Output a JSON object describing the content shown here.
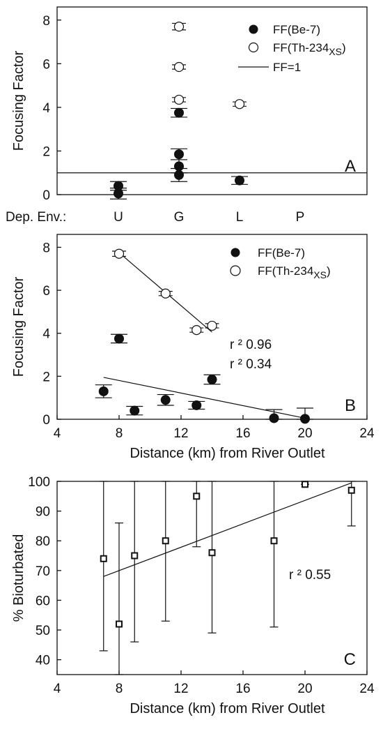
{
  "chart_data": [
    {
      "type": "scatter",
      "panel_label": "A",
      "ylabel": "Focusing Factor",
      "ylim": [
        0,
        8.6
      ],
      "yticks": [
        0,
        2,
        4,
        6,
        8
      ],
      "xaxis_prefix": "Dep. Env.:",
      "categories": [
        "U",
        "G",
        "L",
        "P"
      ],
      "legend_position": "top-right",
      "legend": {
        "filled": "FF(Be-7)",
        "open_main": "FF(Th-234",
        "open_sub": "XS",
        "open_close": ")",
        "line": "FF=1"
      },
      "reference_line": 1,
      "series": [
        {
          "name": "FF(Be-7)",
          "marker": "filled-circle",
          "points": [
            {
              "category": "U",
              "y": 0.05,
              "err": 0.25
            },
            {
              "category": "U",
              "y": 0.4,
              "err": 0.2
            },
            {
              "category": "G",
              "y": 3.75,
              "err": 0.2
            },
            {
              "category": "G",
              "y": 1.85,
              "err": 0.25
            },
            {
              "category": "G",
              "y": 1.3,
              "err": 0.3
            },
            {
              "category": "G",
              "y": 0.9,
              "err": 0.3
            },
            {
              "category": "L",
              "y": 0.65,
              "err": 0.18
            }
          ]
        },
        {
          "name": "FF(Th-234XS)",
          "marker": "open-circle",
          "points": [
            {
              "category": "G",
              "y": 7.7,
              "err": 0.15
            },
            {
              "category": "G",
              "y": 5.85,
              "err": 0.1
            },
            {
              "category": "G",
              "y": 4.35,
              "err": 0.1
            },
            {
              "category": "L",
              "y": 4.15,
              "err": 0.1
            }
          ]
        }
      ]
    },
    {
      "type": "scatter",
      "panel_label": "B",
      "ylabel": "Focusing Factor",
      "xlabel": "Distance (km) from River Outlet",
      "xlim": [
        4,
        24
      ],
      "ylim": [
        0,
        8.6
      ],
      "xticks": [
        4,
        8,
        12,
        16,
        20,
        24
      ],
      "yticks": [
        0,
        2,
        4,
        6,
        8
      ],
      "legend_position": "top-right",
      "legend": {
        "filled": "FF(Be-7)",
        "open_main": "FF(Th-234",
        "open_sub": "XS",
        "open_close": ")"
      },
      "r_squared": [
        "r ²   0.96",
        "r ²   0.34"
      ],
      "series": [
        {
          "name": "FF(Be-7)",
          "marker": "filled-circle",
          "points": [
            {
              "x": 7,
              "y": 1.3,
              "err": 0.3
            },
            {
              "x": 8,
              "y": 3.75,
              "err": 0.2
            },
            {
              "x": 9,
              "y": 0.4,
              "err": 0.2
            },
            {
              "x": 11,
              "y": 0.9,
              "err": 0.25
            },
            {
              "x": 13,
              "y": 0.65,
              "err": 0.18
            },
            {
              "x": 14,
              "y": 1.85,
              "err": 0.22
            },
            {
              "x": 18,
              "y": 0.05,
              "err": 0.4
            },
            {
              "x": 20,
              "y": 0.02,
              "err": 0.5
            }
          ],
          "fit": {
            "x": [
              7,
              20
            ],
            "y": [
              1.95,
              0.05
            ]
          }
        },
        {
          "name": "FF(Th-234XS)",
          "marker": "open-circle",
          "points": [
            {
              "x": 8,
              "y": 7.7,
              "err": 0.12
            },
            {
              "x": 11,
              "y": 5.85,
              "err": 0.1
            },
            {
              "x": 13,
              "y": 4.15,
              "err": 0.1
            },
            {
              "x": 14,
              "y": 4.35,
              "err": 0.1
            }
          ],
          "fit": {
            "x": [
              8,
              14
            ],
            "y": [
              7.75,
              4.05
            ]
          }
        }
      ]
    },
    {
      "type": "scatter",
      "panel_label": "C",
      "ylabel": "% Bioturbated",
      "xlabel": "Distance (km) from River Outlet",
      "xlim": [
        4,
        24
      ],
      "ylim": [
        35,
        100
      ],
      "xticks": [
        4,
        8,
        12,
        16,
        20,
        24
      ],
      "yticks": [
        40,
        50,
        60,
        70,
        80,
        90,
        100
      ],
      "r_squared": [
        "r ²   0.55"
      ],
      "series": [
        {
          "name": "% Bioturbated",
          "marker": "open-square",
          "points": [
            {
              "x": 7,
              "y": 74,
              "lo": 43,
              "hi": 100
            },
            {
              "x": 8,
              "y": 52,
              "lo": 35,
              "hi": 86
            },
            {
              "x": 9,
              "y": 75,
              "lo": 46,
              "hi": 100
            },
            {
              "x": 11,
              "y": 80,
              "lo": 53,
              "hi": 100
            },
            {
              "x": 13,
              "y": 95,
              "lo": 78,
              "hi": 100
            },
            {
              "x": 14,
              "y": 76,
              "lo": 49,
              "hi": 100
            },
            {
              "x": 18,
              "y": 80,
              "lo": 51,
              "hi": 100
            },
            {
              "x": 20,
              "y": 99,
              "lo": 99,
              "hi": 100
            },
            {
              "x": 23,
              "y": 97,
              "lo": 85,
              "hi": 100
            }
          ],
          "fit": {
            "x": [
              7,
              23
            ],
            "y": [
              68,
              99.5
            ]
          }
        }
      ]
    }
  ]
}
